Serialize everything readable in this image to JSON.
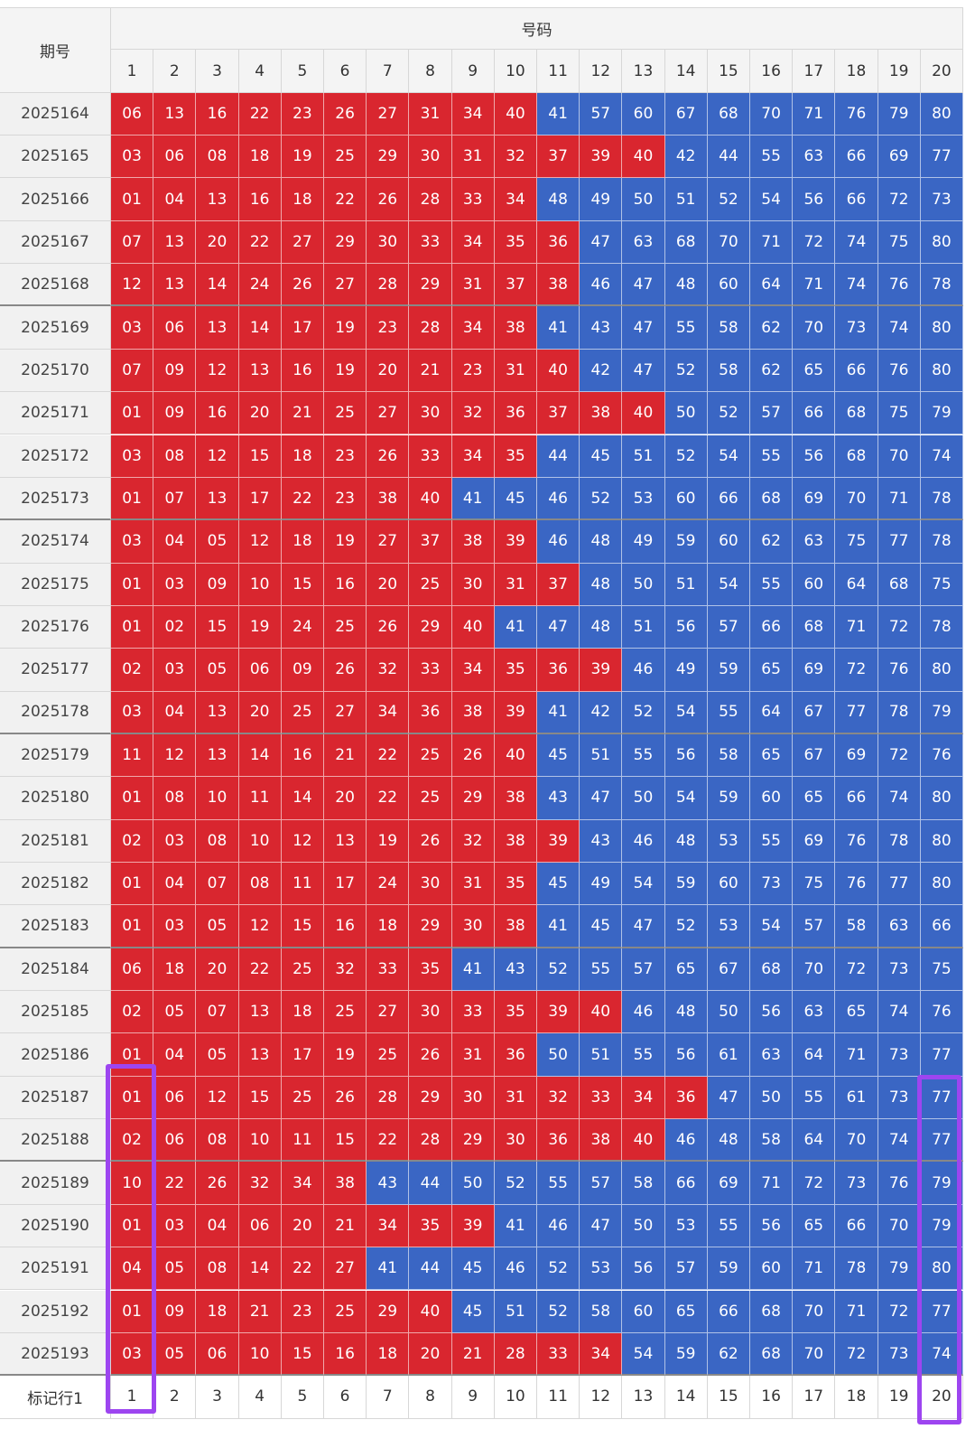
{
  "header": {
    "period": "期号",
    "numbers": "号码",
    "columns": [
      "1",
      "2",
      "3",
      "4",
      "5",
      "6",
      "7",
      "8",
      "9",
      "10",
      "11",
      "12",
      "13",
      "14",
      "15",
      "16",
      "17",
      "18",
      "19",
      "20"
    ]
  },
  "rows": [
    {
      "period": "2025164",
      "numbers": [
        "06",
        "13",
        "16",
        "22",
        "23",
        "26",
        "27",
        "31",
        "34",
        "40",
        "41",
        "57",
        "60",
        "67",
        "68",
        "70",
        "71",
        "76",
        "79",
        "80"
      ]
    },
    {
      "period": "2025165",
      "numbers": [
        "03",
        "06",
        "08",
        "18",
        "19",
        "25",
        "29",
        "30",
        "31",
        "32",
        "37",
        "39",
        "40",
        "42",
        "44",
        "55",
        "63",
        "66",
        "69",
        "77"
      ]
    },
    {
      "period": "2025166",
      "numbers": [
        "01",
        "04",
        "13",
        "16",
        "18",
        "22",
        "26",
        "28",
        "33",
        "34",
        "48",
        "49",
        "50",
        "51",
        "52",
        "54",
        "56",
        "66",
        "72",
        "73"
      ]
    },
    {
      "period": "2025167",
      "numbers": [
        "07",
        "13",
        "20",
        "22",
        "27",
        "29",
        "30",
        "33",
        "34",
        "35",
        "36",
        "47",
        "63",
        "68",
        "70",
        "71",
        "72",
        "74",
        "75",
        "80"
      ]
    },
    {
      "period": "2025168",
      "numbers": [
        "12",
        "13",
        "14",
        "24",
        "26",
        "27",
        "28",
        "29",
        "31",
        "37",
        "38",
        "46",
        "47",
        "48",
        "60",
        "64",
        "71",
        "74",
        "76",
        "78"
      ]
    },
    {
      "period": "2025169",
      "numbers": [
        "03",
        "06",
        "13",
        "14",
        "17",
        "19",
        "23",
        "28",
        "34",
        "38",
        "41",
        "43",
        "47",
        "55",
        "58",
        "62",
        "70",
        "73",
        "74",
        "80"
      ]
    },
    {
      "period": "2025170",
      "numbers": [
        "07",
        "09",
        "12",
        "13",
        "16",
        "19",
        "20",
        "21",
        "23",
        "31",
        "40",
        "42",
        "47",
        "52",
        "58",
        "62",
        "65",
        "66",
        "76",
        "80"
      ]
    },
    {
      "period": "2025171",
      "numbers": [
        "01",
        "09",
        "16",
        "20",
        "21",
        "25",
        "27",
        "30",
        "32",
        "36",
        "37",
        "38",
        "40",
        "50",
        "52",
        "57",
        "66",
        "68",
        "75",
        "79"
      ]
    },
    {
      "period": "2025172",
      "numbers": [
        "03",
        "08",
        "12",
        "15",
        "18",
        "23",
        "26",
        "33",
        "34",
        "35",
        "44",
        "45",
        "51",
        "52",
        "54",
        "55",
        "56",
        "68",
        "70",
        "74"
      ]
    },
    {
      "period": "2025173",
      "numbers": [
        "01",
        "07",
        "13",
        "17",
        "22",
        "23",
        "38",
        "40",
        "41",
        "45",
        "46",
        "52",
        "53",
        "60",
        "66",
        "68",
        "69",
        "70",
        "71",
        "78"
      ]
    },
    {
      "period": "2025174",
      "numbers": [
        "03",
        "04",
        "05",
        "12",
        "18",
        "19",
        "27",
        "37",
        "38",
        "39",
        "46",
        "48",
        "49",
        "59",
        "60",
        "62",
        "63",
        "75",
        "77",
        "78"
      ]
    },
    {
      "period": "2025175",
      "numbers": [
        "01",
        "03",
        "09",
        "10",
        "15",
        "16",
        "20",
        "25",
        "30",
        "31",
        "37",
        "48",
        "50",
        "51",
        "54",
        "55",
        "60",
        "64",
        "68",
        "75"
      ]
    },
    {
      "period": "2025176",
      "numbers": [
        "01",
        "02",
        "15",
        "19",
        "24",
        "25",
        "26",
        "29",
        "40",
        "41",
        "47",
        "48",
        "51",
        "56",
        "57",
        "66",
        "68",
        "71",
        "72",
        "78"
      ]
    },
    {
      "period": "2025177",
      "numbers": [
        "02",
        "03",
        "05",
        "06",
        "09",
        "26",
        "32",
        "33",
        "34",
        "35",
        "36",
        "39",
        "46",
        "49",
        "59",
        "65",
        "69",
        "72",
        "76",
        "80"
      ]
    },
    {
      "period": "2025178",
      "numbers": [
        "03",
        "04",
        "13",
        "20",
        "25",
        "27",
        "34",
        "36",
        "38",
        "39",
        "41",
        "42",
        "52",
        "54",
        "55",
        "64",
        "67",
        "77",
        "78",
        "79"
      ]
    },
    {
      "period": "2025179",
      "numbers": [
        "11",
        "12",
        "13",
        "14",
        "16",
        "21",
        "22",
        "25",
        "26",
        "40",
        "45",
        "51",
        "55",
        "56",
        "58",
        "65",
        "67",
        "69",
        "72",
        "76"
      ]
    },
    {
      "period": "2025180",
      "numbers": [
        "01",
        "08",
        "10",
        "11",
        "14",
        "20",
        "22",
        "25",
        "29",
        "38",
        "43",
        "47",
        "50",
        "54",
        "59",
        "60",
        "65",
        "66",
        "74",
        "80"
      ]
    },
    {
      "period": "2025181",
      "numbers": [
        "02",
        "03",
        "08",
        "10",
        "12",
        "13",
        "19",
        "26",
        "32",
        "38",
        "39",
        "43",
        "46",
        "48",
        "53",
        "55",
        "69",
        "76",
        "78",
        "80"
      ]
    },
    {
      "period": "2025182",
      "numbers": [
        "01",
        "04",
        "07",
        "08",
        "11",
        "17",
        "24",
        "30",
        "31",
        "35",
        "45",
        "49",
        "54",
        "59",
        "60",
        "73",
        "75",
        "76",
        "77",
        "80"
      ]
    },
    {
      "period": "2025183",
      "numbers": [
        "01",
        "03",
        "05",
        "12",
        "15",
        "16",
        "18",
        "29",
        "30",
        "38",
        "41",
        "45",
        "47",
        "52",
        "53",
        "54",
        "57",
        "58",
        "63",
        "66"
      ]
    },
    {
      "period": "2025184",
      "numbers": [
        "06",
        "18",
        "20",
        "22",
        "25",
        "32",
        "33",
        "35",
        "41",
        "43",
        "52",
        "55",
        "57",
        "65",
        "67",
        "68",
        "70",
        "72",
        "73",
        "75"
      ]
    },
    {
      "period": "2025185",
      "numbers": [
        "02",
        "05",
        "07",
        "13",
        "18",
        "25",
        "27",
        "30",
        "33",
        "35",
        "39",
        "40",
        "46",
        "48",
        "50",
        "56",
        "63",
        "65",
        "74",
        "76"
      ]
    },
    {
      "period": "2025186",
      "numbers": [
        "01",
        "04",
        "05",
        "13",
        "17",
        "19",
        "25",
        "26",
        "31",
        "36",
        "50",
        "51",
        "55",
        "56",
        "61",
        "63",
        "64",
        "71",
        "73",
        "77"
      ]
    },
    {
      "period": "2025187",
      "numbers": [
        "01",
        "06",
        "12",
        "15",
        "25",
        "26",
        "28",
        "29",
        "30",
        "31",
        "32",
        "33",
        "34",
        "36",
        "47",
        "50",
        "55",
        "61",
        "73",
        "77"
      ]
    },
    {
      "period": "2025188",
      "numbers": [
        "02",
        "06",
        "08",
        "10",
        "11",
        "15",
        "22",
        "28",
        "29",
        "30",
        "36",
        "38",
        "40",
        "46",
        "48",
        "58",
        "64",
        "70",
        "74",
        "77"
      ]
    },
    {
      "period": "2025189",
      "numbers": [
        "10",
        "22",
        "26",
        "32",
        "34",
        "38",
        "43",
        "44",
        "50",
        "52",
        "55",
        "57",
        "58",
        "66",
        "69",
        "71",
        "72",
        "73",
        "76",
        "79"
      ]
    },
    {
      "period": "2025190",
      "numbers": [
        "01",
        "03",
        "04",
        "06",
        "20",
        "21",
        "34",
        "35",
        "39",
        "41",
        "46",
        "47",
        "50",
        "53",
        "55",
        "56",
        "65",
        "66",
        "70",
        "79"
      ]
    },
    {
      "period": "2025191",
      "numbers": [
        "04",
        "05",
        "08",
        "14",
        "22",
        "27",
        "41",
        "44",
        "45",
        "46",
        "52",
        "53",
        "56",
        "57",
        "59",
        "60",
        "71",
        "78",
        "79",
        "80"
      ]
    },
    {
      "period": "2025192",
      "numbers": [
        "01",
        "09",
        "18",
        "21",
        "23",
        "25",
        "29",
        "40",
        "45",
        "51",
        "52",
        "58",
        "60",
        "65",
        "66",
        "68",
        "70",
        "71",
        "72",
        "77"
      ]
    },
    {
      "period": "2025193",
      "numbers": [
        "03",
        "05",
        "06",
        "10",
        "15",
        "16",
        "18",
        "20",
        "21",
        "28",
        "33",
        "34",
        "54",
        "59",
        "62",
        "68",
        "70",
        "72",
        "73",
        "74"
      ]
    }
  ],
  "footer": {
    "label": "标记行1",
    "columns": [
      "1",
      "2",
      "3",
      "4",
      "5",
      "6",
      "7",
      "8",
      "9",
      "10",
      "11",
      "12",
      "13",
      "14",
      "15",
      "16",
      "17",
      "18",
      "19",
      "20"
    ]
  },
  "colors": {
    "low": "#d9262f",
    "high": "#3a66c4",
    "low_max": 40
  }
}
